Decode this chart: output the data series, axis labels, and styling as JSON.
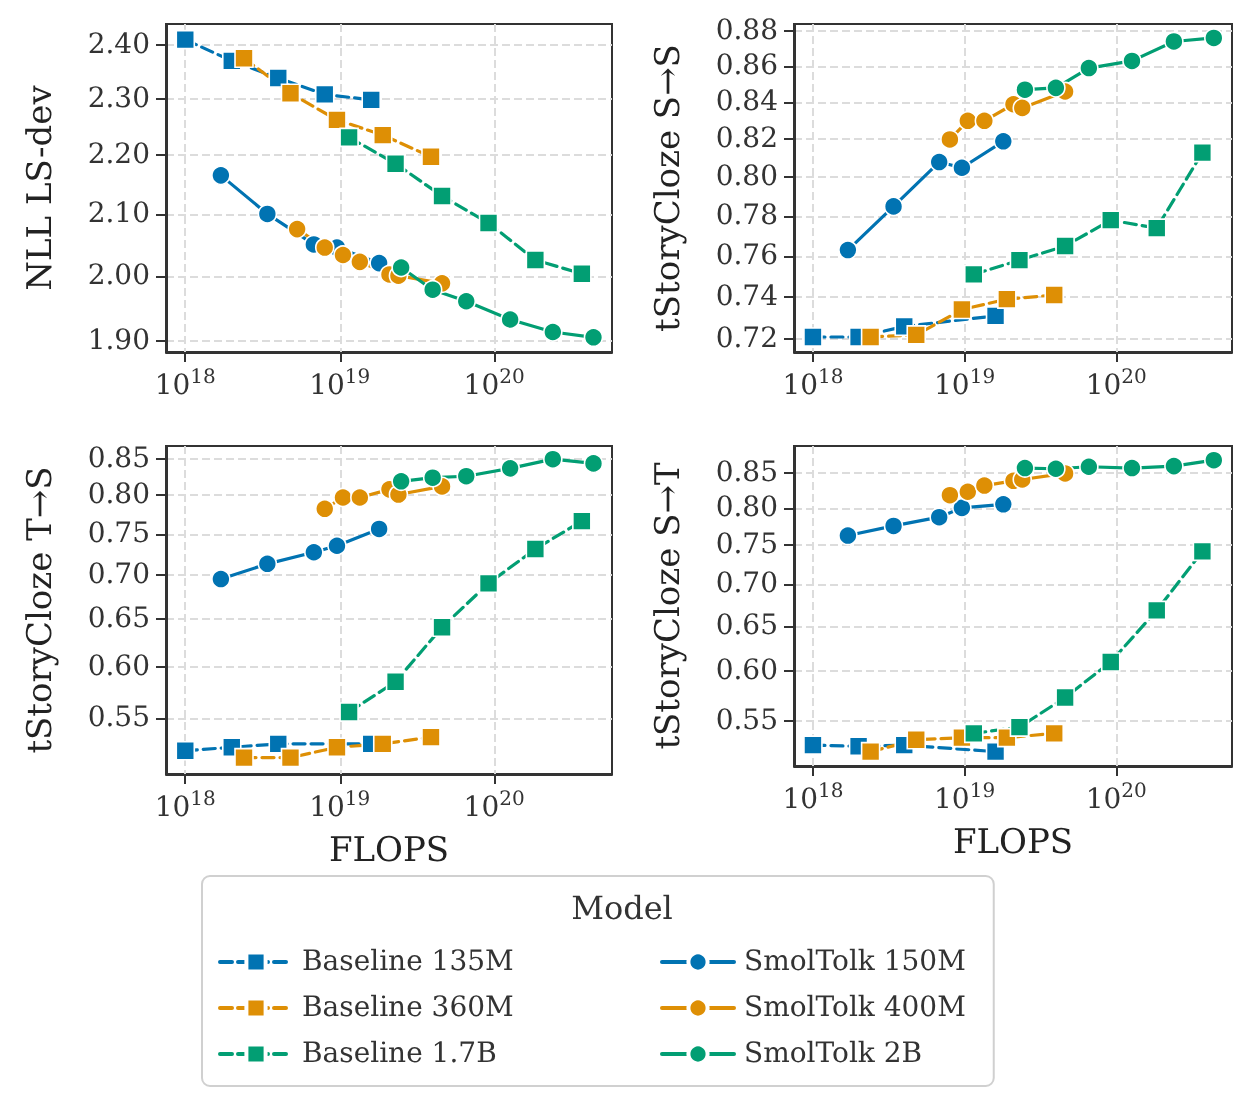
{
  "chart_data": [
    {
      "type": "line",
      "ylabel": "NLL LS-dev",
      "log": "xy",
      "grid": true,
      "xlim": [
        7.5e+17,
        5.8e+20
      ],
      "xticks": [
        {
          "value": 1e+18,
          "label": "10$^{18}$"
        },
        {
          "value": 1e+19,
          "label": "10$^{19}$"
        },
        {
          "value": 1e+20,
          "label": "10$^{20}$"
        }
      ],
      "ylim": [
        1.883,
        2.44
      ],
      "yticks": [
        {
          "value": 1.9,
          "label": "1.90"
        },
        {
          "value": 2.0,
          "label": "2.00"
        },
        {
          "value": 2.1,
          "label": "2.10"
        },
        {
          "value": 2.2,
          "label": "2.20"
        },
        {
          "value": 2.3,
          "label": "2.30"
        },
        {
          "value": 2.4,
          "label": "2.40"
        }
      ],
      "series": [
        {
          "color": "#0173b2",
          "marker": "square",
          "line_style": "dashed",
          "x": [
            1e+18,
            2e+18,
            4e+18,
            8e+18,
            1.6e+19
          ],
          "values": [
            2.41,
            2.37,
            2.338,
            2.308,
            2.298
          ]
        },
        {
          "color": "#de8f05",
          "marker": "square",
          "line_style": "dashed",
          "x": [
            2.4e+18,
            4.8e+18,
            9.6e+18,
            1.9e+19,
            3.9e+19
          ],
          "values": [
            2.375,
            2.31,
            2.262,
            2.235,
            2.197
          ]
        },
        {
          "color": "#029e73",
          "marker": "square",
          "line_style": "dashed",
          "x": [
            1.15e+19,
            2.3e+19,
            4.6e+19,
            9.2e+19,
            1.85e+20,
            3.7e+20
          ],
          "values": [
            2.231,
            2.185,
            2.13,
            2.085,
            2.025,
            2.003
          ]
        },
        {
          "color": "#0173b2",
          "marker": "circle",
          "line_style": "solid",
          "x": [
            1.7e+18,
            3.4e+18,
            6.8e+18,
            9.6e+18,
            1.8e+19
          ],
          "values": [
            2.165,
            2.1,
            2.05,
            2.045,
            2.02
          ]
        },
        {
          "color": "#de8f05",
          "marker": "circle",
          "line_style": "solid",
          "x": [
            5.3e+18,
            8e+18,
            1.05e+19,
            1.35e+19,
            2.1e+19,
            2.4e+19,
            4.6e+19
          ],
          "values": [
            2.075,
            2.045,
            2.033,
            2.022,
            2.002,
            2.0,
            1.988
          ]
        },
        {
          "color": "#029e73",
          "marker": "circle",
          "line_style": "solid",
          "x": [
            2.5e+19,
            4e+19,
            6.6e+19,
            1.27e+20,
            2.4e+20,
            4.4e+20
          ],
          "values": [
            2.013,
            1.978,
            1.96,
            1.932,
            1.913,
            1.905
          ]
        }
      ]
    },
    {
      "type": "line",
      "ylabel": "tStoryCloze S→S",
      "log": "xy",
      "grid": true,
      "xlim": [
        7.5e+17,
        5.8e+20
      ],
      "xticks": [
        {
          "value": 1e+18,
          "label": "10$^{18}$"
        },
        {
          "value": 1e+19,
          "label": "10$^{19}$"
        },
        {
          "value": 1e+20,
          "label": "10$^{20}$"
        }
      ],
      "ylim": [
        0.714,
        0.884
      ],
      "yticks": [
        {
          "value": 0.72,
          "label": "0.72"
        },
        {
          "value": 0.74,
          "label": "0.74"
        },
        {
          "value": 0.76,
          "label": "0.76"
        },
        {
          "value": 0.78,
          "label": "0.78"
        },
        {
          "value": 0.8,
          "label": "0.80"
        },
        {
          "value": 0.82,
          "label": "0.82"
        },
        {
          "value": 0.84,
          "label": "0.84"
        },
        {
          "value": 0.86,
          "label": "0.86"
        },
        {
          "value": 0.88,
          "label": "0.88"
        }
      ],
      "series": [
        {
          "color": "#0173b2",
          "marker": "square",
          "line_style": "dashed",
          "x": [
            1e+18,
            2e+18,
            4e+18,
            8e+18,
            1.6e+19
          ],
          "values": [
            0.721,
            0.721,
            0.726,
            null,
            0.731
          ]
        },
        {
          "color": "#de8f05",
          "marker": "square",
          "line_style": "dashed",
          "x": [
            2.4e+18,
            4.8e+18,
            9.6e+18,
            1.9e+19,
            3.9e+19
          ],
          "values": [
            0.721,
            0.722,
            0.734,
            0.739,
            0.741
          ]
        },
        {
          "color": "#029e73",
          "marker": "square",
          "line_style": "dashed",
          "x": [
            1.15e+19,
            2.3e+19,
            4.6e+19,
            9.2e+19,
            1.85e+20,
            3.7e+20
          ],
          "values": [
            0.751,
            0.758,
            0.765,
            0.778,
            0.774,
            0.813
          ]
        },
        {
          "color": "#0173b2",
          "marker": "circle",
          "line_style": "solid",
          "x": [
            1.7e+18,
            3.4e+18,
            6.8e+18,
            9.6e+18,
            1.8e+19
          ],
          "values": [
            0.763,
            0.785,
            0.808,
            0.805,
            0.819
          ]
        },
        {
          "color": "#de8f05",
          "marker": "circle",
          "line_style": "solid",
          "x": [
            8e+18,
            1.05e+19,
            1.35e+19,
            2.1e+19,
            2.4e+19,
            4.6e+19
          ],
          "values": [
            0.82,
            0.83,
            0.83,
            0.839,
            0.837,
            0.846
          ]
        },
        {
          "color": "#029e73",
          "marker": "circle",
          "line_style": "solid",
          "x": [
            2.5e+19,
            4e+19,
            6.6e+19,
            1.27e+20,
            2.4e+20,
            4.4e+20
          ],
          "values": [
            0.847,
            0.848,
            0.859,
            0.863,
            0.874,
            0.876
          ]
        }
      ]
    },
    {
      "type": "line",
      "xlabel": "FLOPS",
      "ylabel": "tStoryCloze T→S",
      "log": "xy",
      "grid": true,
      "legend": "bottom",
      "legend_title": "Model",
      "xlim": [
        7.5e+17,
        5.8e+20
      ],
      "xticks": [
        {
          "value": 1e+18,
          "label": "10$^{18}$"
        },
        {
          "value": 1e+19,
          "label": "10$^{19}$"
        },
        {
          "value": 1e+20,
          "label": "10$^{20}$"
        }
      ],
      "ylim": [
        0.501,
        0.869
      ],
      "yticks": [
        {
          "value": 0.55,
          "label": "0.55"
        },
        {
          "value": 0.6,
          "label": "0.60"
        },
        {
          "value": 0.65,
          "label": "0.65"
        },
        {
          "value": 0.7,
          "label": "0.70"
        },
        {
          "value": 0.75,
          "label": "0.75"
        },
        {
          "value": 0.8,
          "label": "0.80"
        },
        {
          "value": 0.85,
          "label": "0.85"
        }
      ],
      "series": [
        {
          "name": "Baseline 135M",
          "color": "#0173b2",
          "marker": "square",
          "line_style": "dashed",
          "x": [
            1e+18,
            2e+18,
            4e+18,
            8e+18,
            1.6e+19
          ],
          "values": [
            0.521,
            0.524,
            0.527,
            null,
            0.527
          ]
        },
        {
          "name": "Baseline 360M",
          "color": "#de8f05",
          "marker": "square",
          "line_style": "dashed",
          "x": [
            2.4e+18,
            4.8e+18,
            9.6e+18,
            1.9e+19,
            3.9e+19
          ],
          "values": [
            0.515,
            0.515,
            0.524,
            0.527,
            0.533
          ]
        },
        {
          "name": "Baseline 1.7B",
          "color": "#029e73",
          "marker": "square",
          "line_style": "dashed",
          "x": [
            1.15e+19,
            2.3e+19,
            4.6e+19,
            9.2e+19,
            1.85e+20,
            3.7e+20
          ],
          "values": [
            0.556,
            0.585,
            0.641,
            0.69,
            0.731,
            0.766
          ]
        },
        {
          "name": "SmolTolk 150M",
          "color": "#0173b2",
          "marker": "circle",
          "line_style": "solid",
          "x": [
            1.7e+18,
            3.4e+18,
            6.8e+18,
            9.6e+18,
            1.8e+19
          ],
          "values": [
            0.695,
            0.713,
            0.727,
            0.735,
            0.756
          ]
        },
        {
          "name": "SmolTolk 400M",
          "color": "#de8f05",
          "marker": "circle",
          "line_style": "solid",
          "x": [
            8e+18,
            1.05e+19,
            1.35e+19,
            2.1e+19,
            2.4e+19,
            4.6e+19
          ],
          "values": [
            0.782,
            0.797,
            0.797,
            0.808,
            0.801,
            0.812
          ]
        },
        {
          "name": "SmolTolk 2B",
          "color": "#029e73",
          "marker": "circle",
          "line_style": "solid",
          "x": [
            2.5e+19,
            4e+19,
            6.6e+19,
            1.27e+20,
            2.4e+20,
            4.4e+20
          ],
          "values": [
            0.819,
            0.824,
            0.826,
            0.837,
            0.85,
            0.844
          ]
        }
      ]
    },
    {
      "type": "line",
      "xlabel": "FLOPS",
      "ylabel": "tStoryCloze S→T",
      "log": "xy",
      "grid": true,
      "xlim": [
        7.5e+17,
        5.8e+20
      ],
      "xticks": [
        {
          "value": 1e+18,
          "label": "10$^{18}$"
        },
        {
          "value": 1e+19,
          "label": "10$^{19}$"
        },
        {
          "value": 1e+20,
          "label": "10$^{20}$"
        }
      ],
      "ylim": [
        0.508,
        0.892
      ],
      "yticks": [
        {
          "value": 0.55,
          "label": "0.55"
        },
        {
          "value": 0.6,
          "label": "0.60"
        },
        {
          "value": 0.65,
          "label": "0.65"
        },
        {
          "value": 0.7,
          "label": "0.70"
        },
        {
          "value": 0.75,
          "label": "0.75"
        },
        {
          "value": 0.8,
          "label": "0.80"
        },
        {
          "value": 0.85,
          "label": "0.85"
        }
      ],
      "series": [
        {
          "color": "#0173b2",
          "marker": "square",
          "line_style": "dashed",
          "x": [
            1e+18,
            2e+18,
            4e+18,
            8e+18,
            1.6e+19
          ],
          "values": [
            0.527,
            0.526,
            0.527,
            null,
            0.521
          ]
        },
        {
          "color": "#de8f05",
          "marker": "square",
          "line_style": "dashed",
          "x": [
            2.4e+18,
            4.8e+18,
            9.6e+18,
            1.9e+19,
            3.9e+19
          ],
          "values": [
            0.521,
            0.532,
            0.534,
            0.534,
            0.538
          ]
        },
        {
          "color": "#029e73",
          "marker": "square",
          "line_style": "dashed",
          "x": [
            1.15e+19,
            2.3e+19,
            4.6e+19,
            9.2e+19,
            1.85e+20,
            3.7e+20
          ],
          "values": [
            0.538,
            0.544,
            0.573,
            0.61,
            0.668,
            0.741
          ]
        },
        {
          "color": "#0173b2",
          "marker": "circle",
          "line_style": "solid",
          "x": [
            1.7e+18,
            3.4e+18,
            6.8e+18,
            9.6e+18,
            1.8e+19
          ],
          "values": [
            0.762,
            0.775,
            0.787,
            0.8,
            0.805
          ]
        },
        {
          "color": "#de8f05",
          "marker": "circle",
          "line_style": "solid",
          "x": [
            8e+18,
            1.05e+19,
            1.35e+19,
            2.1e+19,
            2.4e+19,
            4.6e+19
          ],
          "values": [
            0.818,
            0.823,
            0.832,
            0.839,
            0.841,
            0.85
          ]
        },
        {
          "color": "#029e73",
          "marker": "circle",
          "line_style": "solid",
          "x": [
            2.5e+19,
            4e+19,
            6.6e+19,
            1.27e+20,
            2.4e+20,
            4.4e+20
          ],
          "values": [
            0.858,
            0.857,
            0.86,
            0.858,
            0.861,
            0.87
          ]
        }
      ]
    }
  ]
}
